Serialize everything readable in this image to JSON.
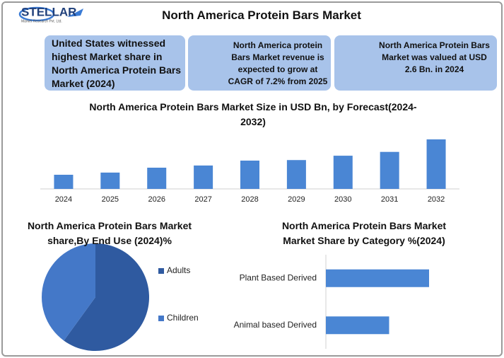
{
  "logo": {
    "name": "STELLAR",
    "tagline": "Market Research Pvt. Ltd."
  },
  "title": "North America Protein Bars Market",
  "cards": [
    "United States witnessed highest Market share in North America Protein Bars Market (2024)",
    "North America protein Bars Market revenue is expected to grow at CAGR of 7.2% from 2025",
    "North America Protein Bars Market was valued at USD 2.6 Bn. in 2024"
  ],
  "chart_data": [
    {
      "type": "bar",
      "title": "North America Protein Bars Market Size in USD Bn, by Forecast(2024-2032)",
      "categories": [
        "2024",
        "2025",
        "2026",
        "2027",
        "2028",
        "2029",
        "2030",
        "2031",
        "2032"
      ],
      "values": [
        2.6,
        3.0,
        3.9,
        4.3,
        5.2,
        5.3,
        6.1,
        6.8,
        9.1
      ],
      "color": "#4a86d4"
    },
    {
      "type": "pie",
      "title": "North America Protein Bars Market share,By End Use (2024)%",
      "categories": [
        "Adults",
        "Children"
      ],
      "values": [
        60,
        40
      ],
      "colors": [
        "#2f5aa0",
        "#4478c8"
      ]
    },
    {
      "type": "barh",
      "title": "North America Protein Bars Market Market Share by Category %(2024)",
      "categories": [
        "Plant Based Derived",
        "Animal based Derived"
      ],
      "values": [
        62,
        38
      ],
      "color": "#4a86d4"
    }
  ]
}
